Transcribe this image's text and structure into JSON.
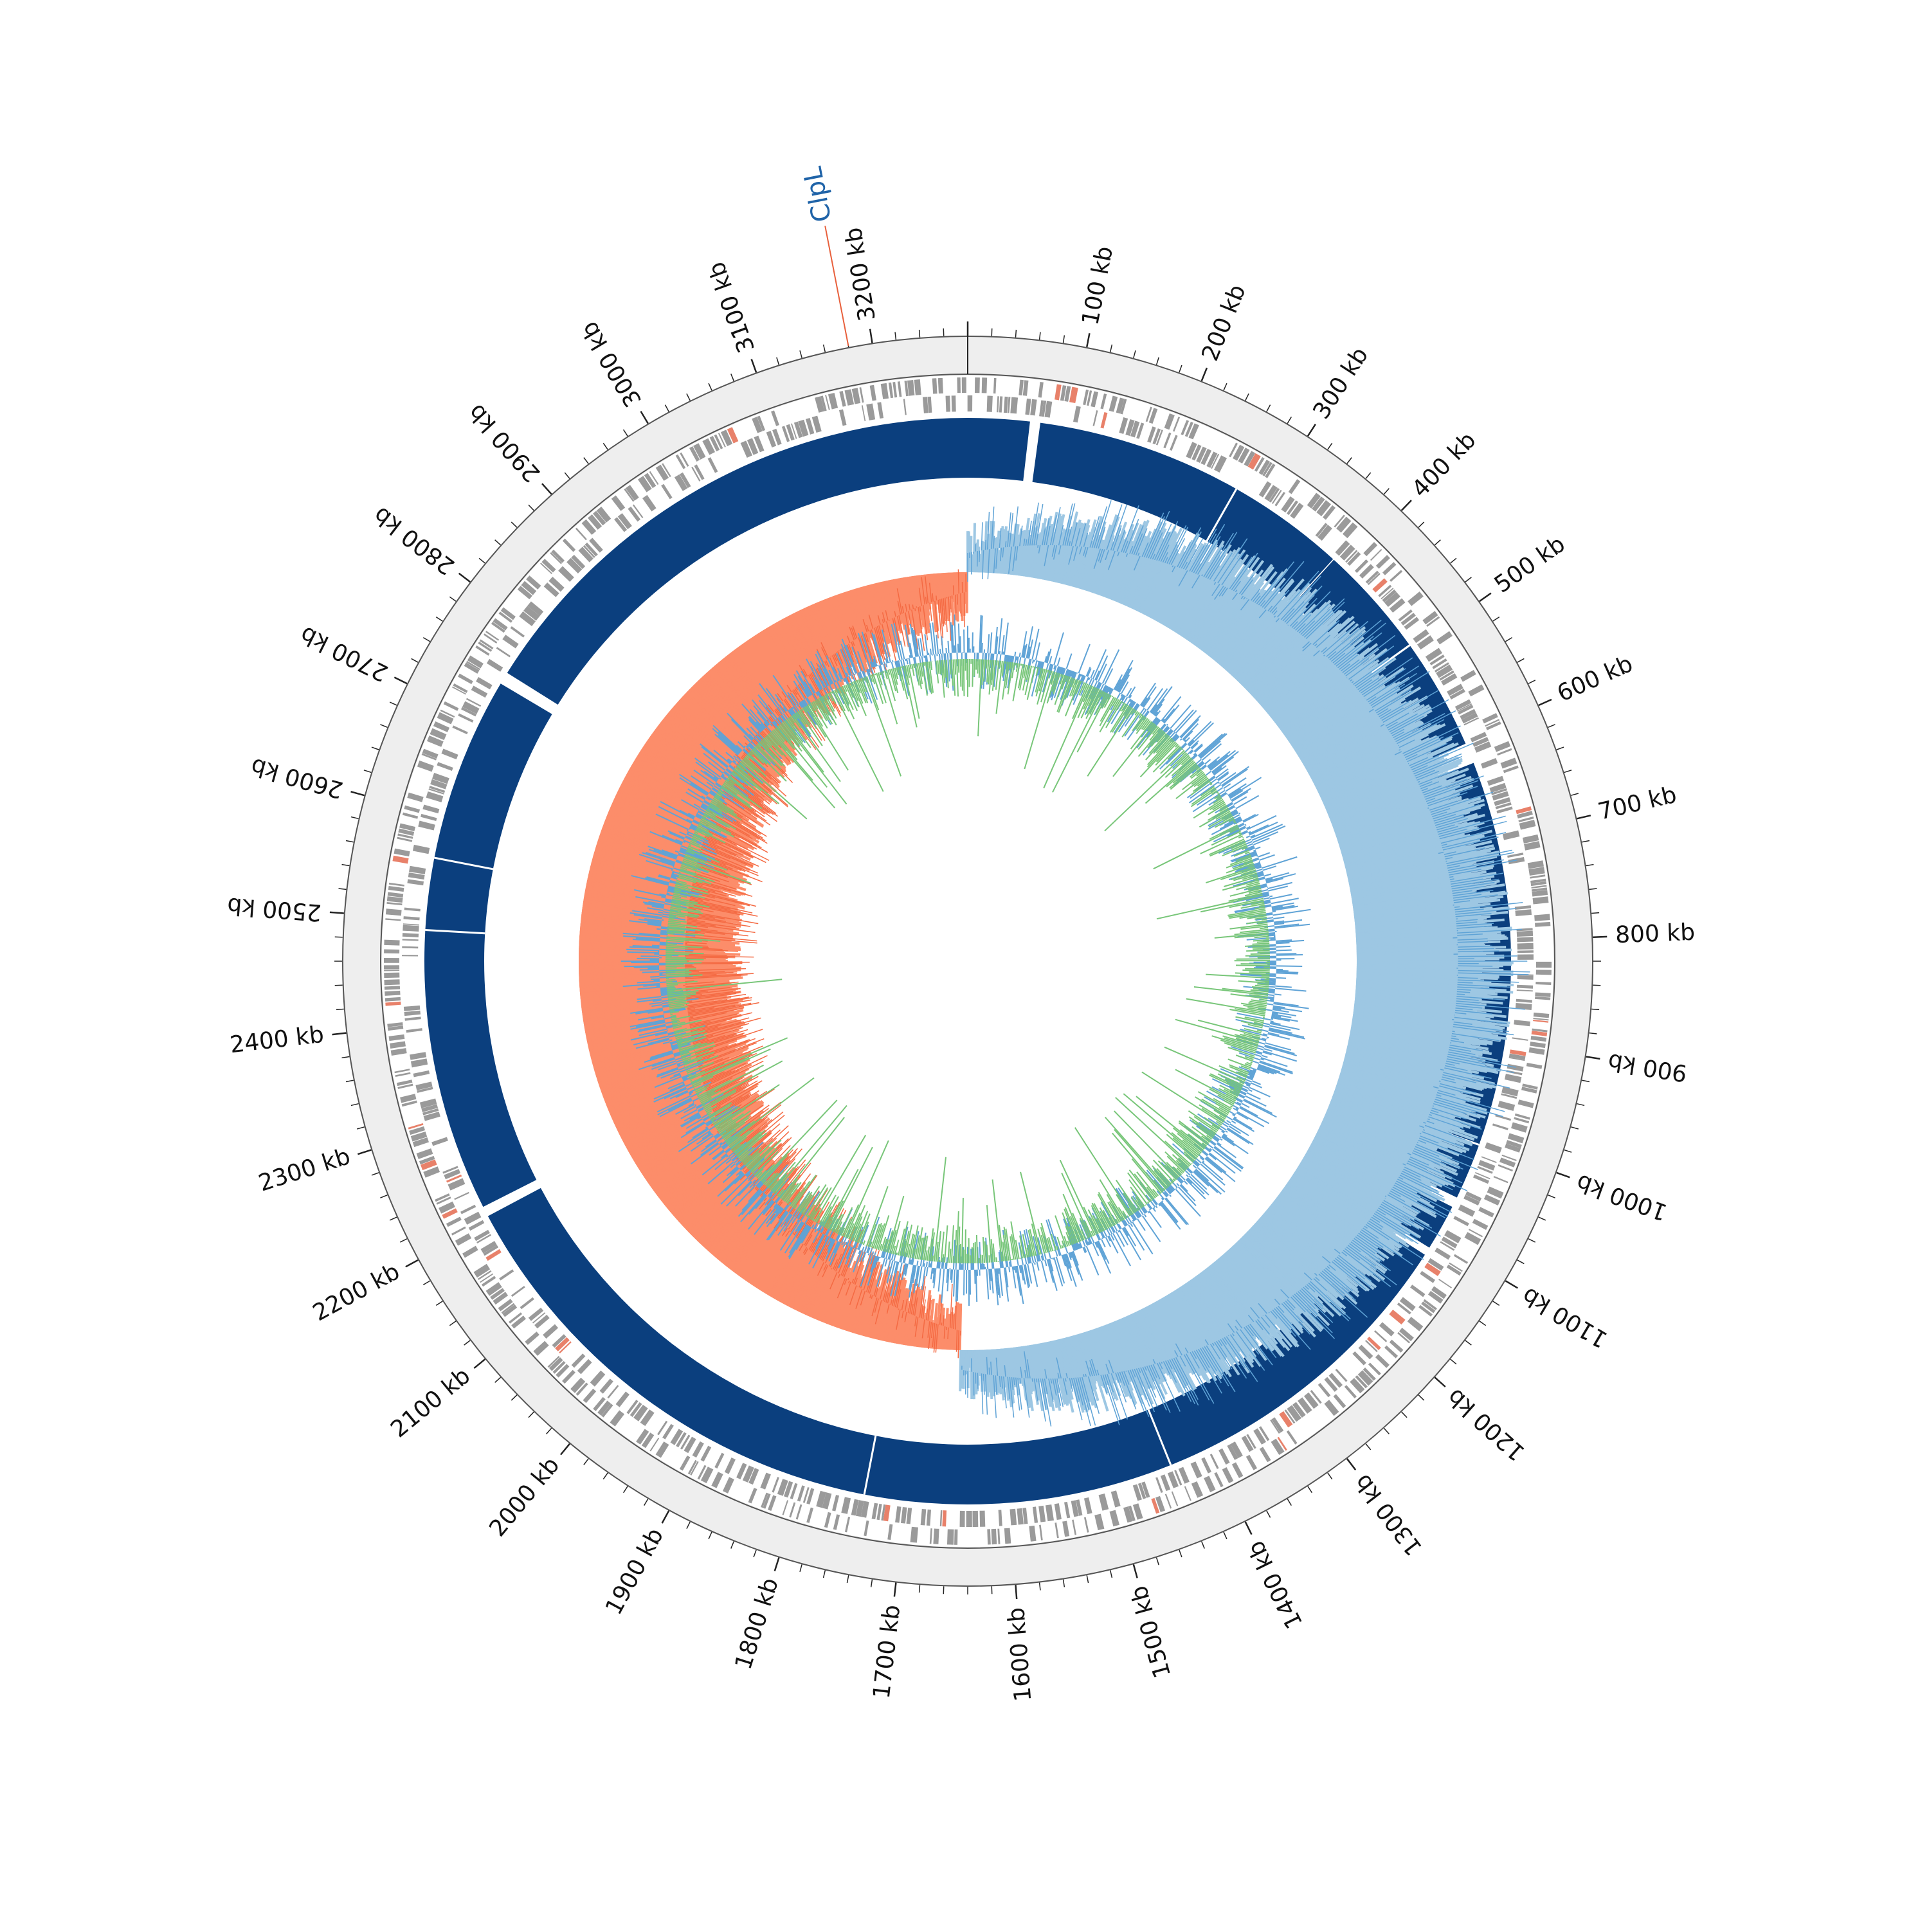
{
  "genome": {
    "total_kb": 3280,
    "tick_labels": [
      "100 kb",
      "200 kb",
      "300 kb",
      "400 kb",
      "500 kb",
      "600 kb",
      "700 kb",
      "800 kb",
      "900 kb",
      "1000 kb",
      "1100 kb",
      "1200 kb",
      "1300 kb",
      "1400 kb",
      "1500 kb",
      "1600 kb",
      "1700 kb",
      "1800 kb",
      "1900 kb",
      "2000 kb",
      "2100 kb",
      "2200 kb",
      "2300 kb",
      "2400 kb",
      "2500 kb",
      "2600 kb",
      "2700 kb",
      "2800 kb",
      "2900 kb",
      "3000 kb",
      "3100 kb",
      "3200 kb"
    ],
    "major_tick_kb": 100,
    "minor_tick_kb": 20
  },
  "annotation": {
    "label": "ClpL",
    "position_kb": 3180,
    "label_color": "#1f63a8",
    "line_color": "#e8603c"
  },
  "tracks": {
    "ring_background": "#eeeeee",
    "gene_color": "#9a9a9a",
    "gene_highlight_color": "#e8816a",
    "contig_color": "#0b3f7e",
    "contig_gap_kb": [
      [
        60,
        70
      ],
      [
        385,
        386
      ],
      [
        495,
        497
      ],
      [
        605,
        625
      ],
      [
        1055,
        1065
      ],
      [
        1110,
        1118
      ],
      [
        2205,
        2215
      ],
      [
        2740,
        2752
      ]
    ],
    "skew_positive_color": "#9dc7e3",
    "skew_negative_color": "#fc8d6a",
    "skew_switch_kb": [
      0,
      1650
    ],
    "gc_content_color": "#5fa3d6",
    "gc_skew_color": "#78c679"
  }
}
